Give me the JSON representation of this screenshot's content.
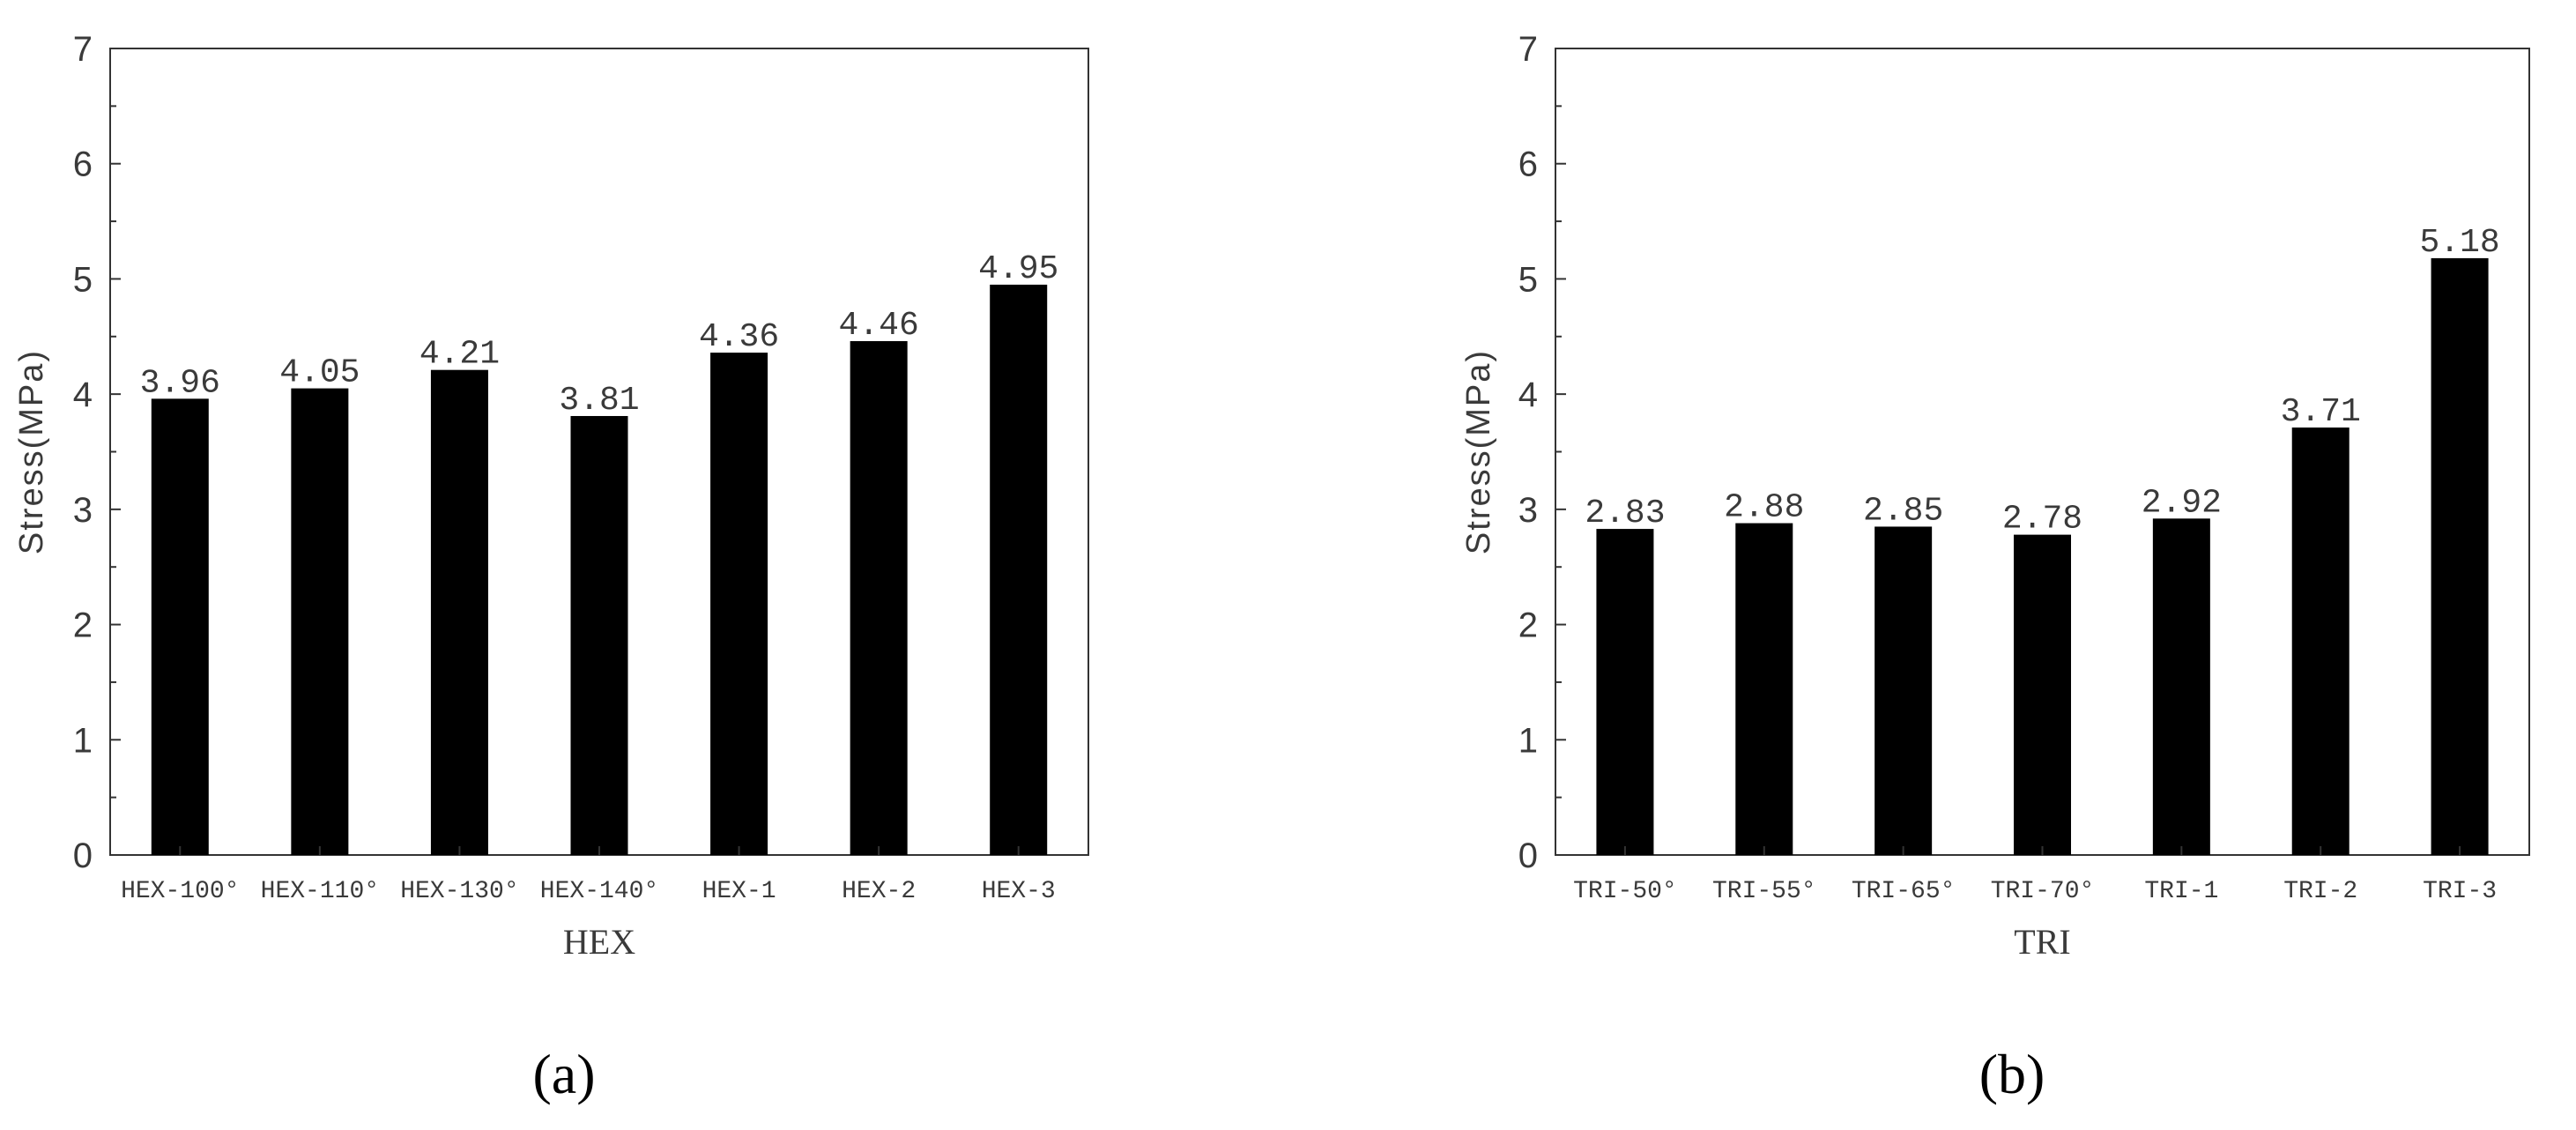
{
  "chart_data": [
    {
      "type": "bar",
      "categories": [
        "HEX-100°",
        "HEX-110°",
        "HEX-130°",
        "HEX-140°",
        "HEX-1",
        "HEX-2",
        "HEX-3"
      ],
      "values": [
        3.96,
        4.05,
        4.21,
        3.81,
        4.36,
        4.46,
        4.95
      ],
      "data_labels": [
        "3.96",
        "4.05",
        "4.21",
        "3.81",
        "4.36",
        "4.46",
        "4.95"
      ],
      "xlabel": "HEX",
      "ylabel": "Stress(MPa)",
      "ylim": [
        0,
        7
      ],
      "yticks": [
        "0",
        "1",
        "2",
        "3",
        "4",
        "5",
        "6",
        "7"
      ],
      "panel_label": "(a)",
      "bar_color": "#000000",
      "grid": false
    },
    {
      "type": "bar",
      "categories": [
        "TRI-50°",
        "TRI-55°",
        "TRI-65°",
        "TRI-70°",
        "TRI-1",
        "TRI-2",
        "TRI-3"
      ],
      "values": [
        2.83,
        2.88,
        2.85,
        2.78,
        2.92,
        3.71,
        5.18
      ],
      "data_labels": [
        "2.83",
        "2.88",
        "2.85",
        "2.78",
        "2.92",
        "3.71",
        "5.18"
      ],
      "xlabel": "TRI",
      "ylabel": "Stress(MPa)",
      "ylim": [
        0,
        7
      ],
      "yticks": [
        "0",
        "1",
        "2",
        "3",
        "4",
        "5",
        "6",
        "7"
      ],
      "panel_label": "(b)",
      "bar_color": "#000000",
      "grid": false
    }
  ]
}
